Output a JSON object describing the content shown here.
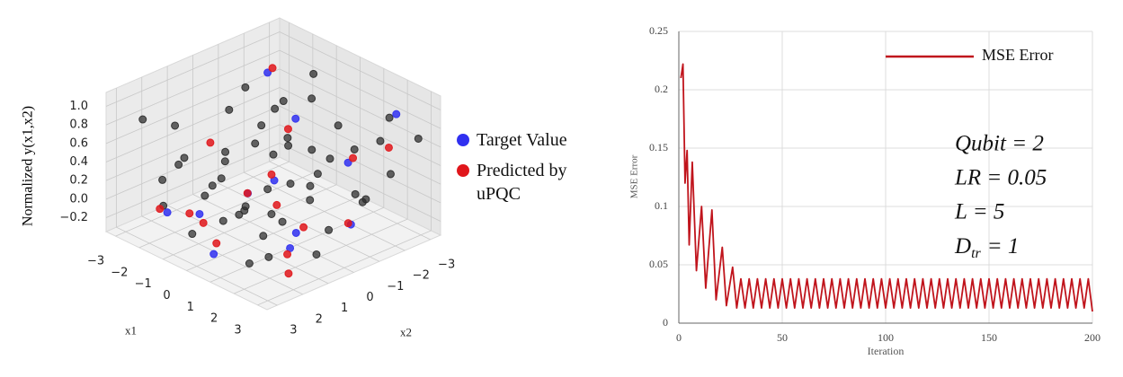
{
  "chart_data": [
    {
      "type": "scatter3d",
      "x_label": "x1",
      "y_label": "x2",
      "z_label": "Normalized y(x1,x2)",
      "x1lim": [
        -3.4,
        3.4
      ],
      "x2lim": [
        -3.4,
        3.4
      ],
      "zlim": [
        -0.35,
        1.15
      ],
      "x1ticks": [
        {
          "value": -3,
          "label": "−3"
        },
        {
          "value": -2,
          "label": "−2"
        },
        {
          "value": -1,
          "label": "−1"
        },
        0,
        1,
        2,
        3
      ],
      "x2ticks": [
        {
          "value": -3,
          "label": "−3"
        },
        {
          "value": -2,
          "label": "−2"
        },
        {
          "value": -1,
          "label": "−1"
        },
        0,
        1,
        2,
        3
      ],
      "zticks": [
        {
          "value": -0.2,
          "label": "−0.2"
        },
        {
          "value": 0,
          "label": "0.0"
        },
        0.2,
        0.4,
        0.6,
        0.8,
        {
          "value": 1,
          "label": "1.0"
        }
      ],
      "grid": true,
      "series": [
        {
          "color": "#2a2a2a",
          "x1": [
            -2.5,
            -2.0,
            -1.0,
            -2.8,
            0.5,
            1.5,
            2.8,
            -1.5,
            2.0,
            0.0,
            1.0,
            -2.2,
            2.5,
            -0.5,
            1.8,
            -2.9,
            0.8,
            2.2,
            -0.8,
            1.2,
            -1.8,
            2.9,
            -0.3,
            0.3,
            1.6,
            -2.6,
            2.4,
            -1.2,
            0.9,
            -0.1,
            2.7,
            -2.3,
            1.4,
            -1.6,
            0.2,
            2.1,
            -0.6,
            1.9,
            -2.7,
            0.6,
            -1.4,
            2.6,
            -0.9,
            1.1,
            -2.1,
            0.4,
            3.0,
            -3.0,
            1.7,
            -0.2
          ],
          "x2": [
            2.8,
            2.0,
            -2.5,
            -1.5,
            2.5,
            -2.8,
            -2.0,
            0.5,
            1.5,
            0.0,
            1.0,
            -2.6,
            2.5,
            1.5,
            -0.5,
            0.8,
            -1.8,
            0.3,
            -0.8,
            2.2,
            -1.2,
            1.0,
            2.9,
            -2.9,
            0.9,
            1.9,
            -1.4,
            2.6,
            -0.6,
            -1.6,
            2.9,
            -0.4,
            -2.2,
            1.2,
            0.9,
            -2.6,
            -2.0,
            2.7,
            -2.9,
            1.9,
            -2.8,
            -0.8,
            0.3,
            -1.2,
            2.4,
            -0.3,
            -2.9,
            -0.9,
            1.8,
            2.2
          ],
          "values": [
            0.9,
            0.8,
            0.95,
            0.7,
            0.6,
            0.5,
            0.4,
            0.3,
            0.2,
            0.5,
            0.1,
            0.1,
            0.0,
            -0.1,
            -0.15,
            0.2,
            0.7,
            0.6,
            0.8,
            0.35,
            0.45,
            -0.1,
            -0.05,
            0.25,
            0.9,
            -0.15,
            0.15,
            0.55,
            0.05,
            0.35,
            0.3,
            0.65,
            -0.1,
            0.0,
            0.75,
            0.85,
            -0.15,
            -0.12,
            0.4,
            0.15,
            0.6,
            0.3,
            -0.18,
            0.45,
            0.25,
            0.2,
            0.7,
            0.05,
            0.55,
            0.4
          ]
        },
        {
          "name": "Target Value",
          "color": "#3030f0",
          "x1": [
            -2.0,
            -1.5,
            0.5,
            1.5,
            2.0,
            -0.5,
            1.0,
            -2.4,
            2.5,
            0.0,
            -1.0,
            2.2
          ],
          "x2": [
            2.3,
            1.5,
            2.8,
            0.5,
            1.2,
            -0.5,
            -2.0,
            -2.0,
            -2.5,
            1.0,
            -1.8,
            -1.0
          ],
          "values": [
            -0.1,
            -0.15,
            -0.18,
            -0.1,
            -0.12,
            0.1,
            0.3,
            0.85,
            0.95,
            0.2,
            0.55,
            -0.1
          ]
        },
        {
          "name": "Predicted by uPQC",
          "color": "#e0161b",
          "x1": [
            -2.1,
            -1.6,
            0.4,
            1.6,
            2.1,
            -0.4,
            1.1,
            -2.3,
            2.4,
            0.2,
            -1.1,
            2.3,
            2.8,
            -0.8,
            0.9,
            -1.8
          ],
          "x2": [
            2.5,
            1.8,
            2.6,
            0.3,
            1.4,
            -0.3,
            -2.1,
            -2.1,
            -2.3,
            1.2,
            -1.6,
            -0.8,
            2.0,
            2.0,
            0.7,
            0.8
          ],
          "values": [
            -0.05,
            -0.12,
            -0.1,
            -0.05,
            -0.15,
            0.2,
            0.35,
            0.9,
            0.6,
            0.25,
            0.45,
            -0.05,
            -0.2,
            -0.1,
            0.15,
            0.5
          ]
        }
      ]
    },
    {
      "type": "line",
      "x_label": "Iteration",
      "y_label": "MSE Error",
      "xlim": [
        0,
        200
      ],
      "ylim": [
        0,
        0.25
      ],
      "xticks": [
        0,
        50,
        100,
        150,
        200
      ],
      "yticks": [
        0,
        0.05,
        0.1,
        0.15,
        0.2,
        0.25
      ],
      "grid": true,
      "legend": "upper right",
      "annotations": [
        "Qubit = 2",
        "LR = 0.05",
        "L = 5"
      ],
      "subscript_annotation": {
        "text": "D",
        "subscript": "tr",
        "suffix": "= 1"
      },
      "series": [
        {
          "name": "MSE Error",
          "color": "#c0141c",
          "x": [
            1,
            2,
            3,
            4,
            5,
            6.5,
            8.5,
            11,
            13,
            16,
            18,
            21,
            23,
            26,
            28,
            30,
            32,
            34,
            36,
            38,
            40,
            42,
            44,
            46,
            48,
            50,
            52,
            54,
            56,
            58,
            60,
            62,
            64,
            66,
            68,
            70,
            72,
            74,
            76,
            78,
            80,
            82,
            84,
            86,
            88,
            90,
            92,
            94,
            96,
            98,
            100,
            102,
            104,
            106,
            108,
            110,
            112,
            114,
            116,
            118,
            120,
            122,
            124,
            126,
            128,
            130,
            132,
            134,
            136,
            138,
            140,
            142,
            144,
            146,
            148,
            150,
            152,
            154,
            156,
            158,
            160,
            162,
            164,
            166,
            168,
            170,
            172,
            174,
            176,
            178,
            180,
            182,
            184,
            186,
            188,
            190,
            192,
            194,
            196,
            198,
            200
          ],
          "values": [
            0.21,
            0.222,
            0.12,
            0.148,
            0.067,
            0.138,
            0.045,
            0.1,
            0.03,
            0.097,
            0.02,
            0.065,
            0.015,
            0.048,
            0.013,
            0.038,
            0.013,
            0.038,
            0.013,
            0.038,
            0.013,
            0.038,
            0.013,
            0.038,
            0.013,
            0.038,
            0.013,
            0.038,
            0.013,
            0.038,
            0.013,
            0.038,
            0.013,
            0.038,
            0.013,
            0.038,
            0.013,
            0.038,
            0.013,
            0.038,
            0.013,
            0.038,
            0.013,
            0.038,
            0.013,
            0.038,
            0.013,
            0.038,
            0.013,
            0.038,
            0.013,
            0.038,
            0.013,
            0.038,
            0.013,
            0.038,
            0.013,
            0.038,
            0.013,
            0.038,
            0.013,
            0.038,
            0.013,
            0.038,
            0.013,
            0.038,
            0.013,
            0.038,
            0.013,
            0.038,
            0.013,
            0.038,
            0.013,
            0.038,
            0.013,
            0.038,
            0.013,
            0.038,
            0.013,
            0.038,
            0.013,
            0.038,
            0.013,
            0.038,
            0.013,
            0.038,
            0.013,
            0.038,
            0.013,
            0.038,
            0.013,
            0.038,
            0.013,
            0.038,
            0.013,
            0.038,
            0.013,
            0.038,
            0.013,
            0.038,
            0.01
          ]
        }
      ]
    }
  ]
}
